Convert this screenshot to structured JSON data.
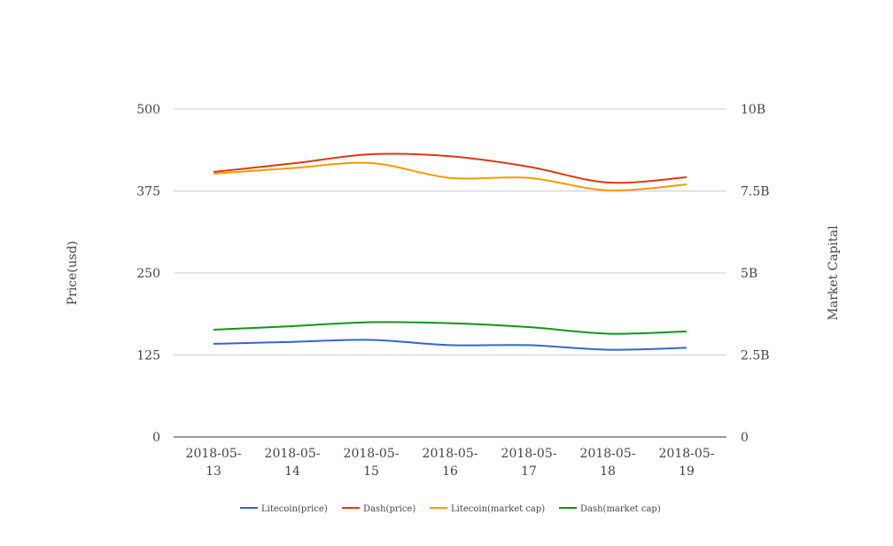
{
  "chart_data": {
    "type": "line",
    "title": "",
    "x": [
      "2018-05-13",
      "2018-05-14",
      "2018-05-15",
      "2018-05-16",
      "2018-05-17",
      "2018-05-18",
      "2018-05-19"
    ],
    "x_tick_labels": [
      [
        "2018-05-",
        "13"
      ],
      [
        "2018-05-",
        "14"
      ],
      [
        "2018-05-",
        "15"
      ],
      [
        "2018-05-",
        "16"
      ],
      [
        "2018-05-",
        "17"
      ],
      [
        "2018-05-",
        "18"
      ],
      [
        "2018-05-",
        "19"
      ]
    ],
    "y_left": {
      "label": "Price(usd)",
      "ylim": [
        0,
        500
      ],
      "ticks": [
        0,
        125,
        250,
        375,
        500
      ],
      "tick_labels": [
        "0",
        "125",
        "250",
        "375",
        "500"
      ]
    },
    "y_right": {
      "label": "Market Capital",
      "ylim": [
        0,
        10000000000
      ],
      "ticks": [
        0,
        2500000000,
        5000000000,
        7500000000,
        10000000000
      ],
      "tick_labels": [
        "0",
        "2.5B",
        "5B",
        "7.5B",
        "10B"
      ]
    },
    "grid": true,
    "legend_position": "bottom",
    "series": [
      {
        "name": "Litecoin(price)",
        "axis": "left",
        "color": "#3366cc",
        "values": [
          142,
          145,
          148,
          140,
          140,
          133,
          136
        ]
      },
      {
        "name": "Dash(price)",
        "axis": "left",
        "color": "#dc3912",
        "values": [
          404,
          417,
          431,
          428,
          412,
          388,
          396
        ]
      },
      {
        "name": "Litecoin(market cap)",
        "axis": "right",
        "color": "#ff9900",
        "values": [
          8030000000,
          8200000000,
          8350000000,
          7900000000,
          7900000000,
          7520000000,
          7700000000
        ]
      },
      {
        "name": "Dash(market cap)",
        "axis": "right",
        "color": "#109618",
        "values": [
          3270000000,
          3380000000,
          3500000000,
          3470000000,
          3350000000,
          3150000000,
          3220000000
        ]
      }
    ]
  }
}
